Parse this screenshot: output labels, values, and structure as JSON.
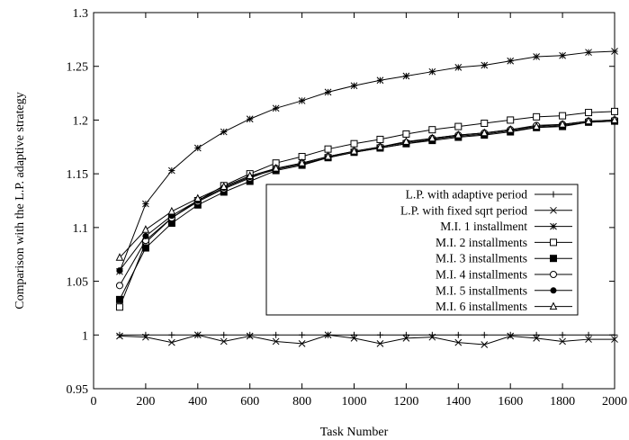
{
  "chart_data": {
    "type": "line",
    "title": "",
    "xlabel": "Task Number",
    "ylabel": "Comparison with the L.P. adaptive strategy",
    "xlim": [
      0,
      2000
    ],
    "ylim": [
      0.95,
      1.3
    ],
    "xticks": [
      0,
      200,
      400,
      600,
      800,
      1000,
      1200,
      1400,
      1600,
      1800,
      2000
    ],
    "yticks": [
      0.95,
      1,
      1.05,
      1.1,
      1.15,
      1.2,
      1.25,
      1.3
    ],
    "ytick_labels": [
      "0.95",
      "1",
      "1.05",
      "1.1",
      "1.15",
      "1.2",
      "1.25",
      "1.3"
    ],
    "grid": false,
    "legend_position": "right",
    "x": [
      100,
      200,
      300,
      400,
      500,
      600,
      700,
      800,
      900,
      1000,
      1100,
      1200,
      1300,
      1400,
      1500,
      1600,
      1700,
      1800,
      1900,
      2000
    ],
    "series": [
      {
        "name": "L.P. with adaptive period",
        "marker": "plus",
        "values": [
          1,
          1,
          1,
          1,
          1,
          1,
          1,
          1,
          1,
          1,
          1,
          1,
          1,
          1,
          1,
          1,
          1,
          1,
          1,
          1
        ]
      },
      {
        "name": "L.P. with fixed sqrt period",
        "marker": "cross",
        "values": [
          0.999,
          0.998,
          0.993,
          1.0,
          0.994,
          0.999,
          0.994,
          0.992,
          1.0,
          0.997,
          0.992,
          0.997,
          0.998,
          0.993,
          0.991,
          0.999,
          0.997,
          0.994,
          0.996,
          0.996
        ]
      },
      {
        "name": "M.I. 1 installment",
        "marker": "star",
        "values": [
          1.059,
          1.122,
          1.153,
          1.174,
          1.189,
          1.201,
          1.211,
          1.218,
          1.226,
          1.232,
          1.237,
          1.241,
          1.245,
          1.249,
          1.251,
          1.255,
          1.259,
          1.26,
          1.263,
          1.264
        ]
      },
      {
        "name": "M.I. 2 installments",
        "marker": "open-square",
        "values": [
          1.026,
          1.086,
          1.109,
          1.125,
          1.139,
          1.15,
          1.16,
          1.166,
          1.173,
          1.178,
          1.182,
          1.187,
          1.191,
          1.194,
          1.197,
          1.2,
          1.203,
          1.204,
          1.207,
          1.208
        ]
      },
      {
        "name": "M.I. 3 installments",
        "marker": "filled-square",
        "values": [
          1.033,
          1.081,
          1.104,
          1.121,
          1.133,
          1.143,
          1.153,
          1.158,
          1.165,
          1.17,
          1.174,
          1.178,
          1.181,
          1.184,
          1.186,
          1.189,
          1.193,
          1.194,
          1.198,
          1.199
        ]
      },
      {
        "name": "M.I. 4 installments",
        "marker": "open-circle",
        "values": [
          1.046,
          1.088,
          1.109,
          1.124,
          1.136,
          1.146,
          1.155,
          1.16,
          1.166,
          1.171,
          1.175,
          1.179,
          1.183,
          1.186,
          1.188,
          1.191,
          1.195,
          1.196,
          1.199,
          1.2
        ]
      },
      {
        "name": "M.I. 5 installments",
        "marker": "filled-circle",
        "values": [
          1.06,
          1.092,
          1.111,
          1.125,
          1.137,
          1.147,
          1.154,
          1.159,
          1.165,
          1.17,
          1.174,
          1.178,
          1.182,
          1.185,
          1.187,
          1.19,
          1.193,
          1.195,
          1.198,
          1.199
        ]
      },
      {
        "name": "M.I. 6 installments",
        "marker": "open-triangle",
        "values": [
          1.072,
          1.098,
          1.115,
          1.127,
          1.138,
          1.148,
          1.155,
          1.16,
          1.166,
          1.171,
          1.175,
          1.18,
          1.183,
          1.186,
          1.188,
          1.191,
          1.194,
          1.196,
          1.199,
          1.2
        ]
      }
    ]
  }
}
